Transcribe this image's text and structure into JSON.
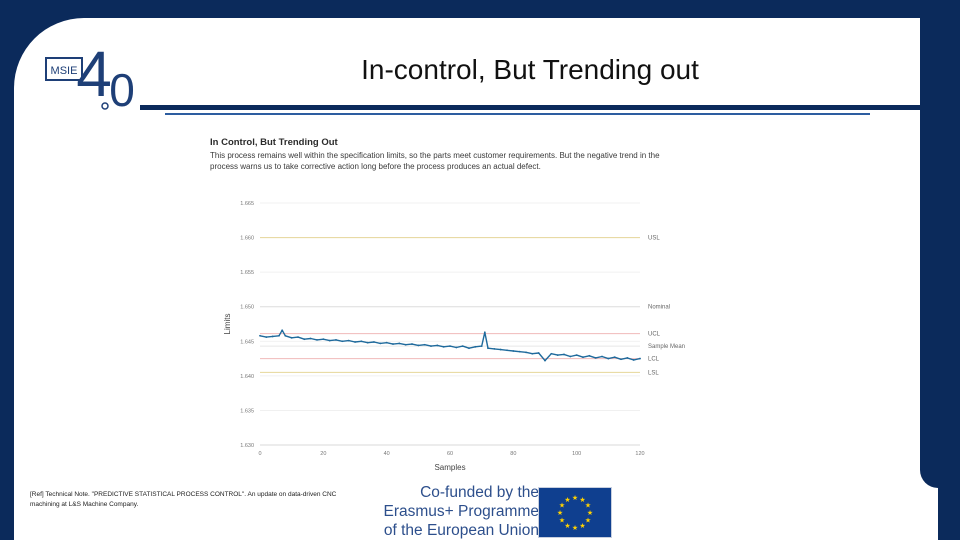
{
  "slide": {
    "title": "In-control, But Trending out",
    "reference": "[Ref] Technical Note. \"PREDICTIVE STATISTICAL PROCESS CONTROL\". An update on data-driven CNC machining at L&S Machine Company.",
    "cofund_lines": [
      "Co-funded by the",
      "Erasmus+ Programme",
      "of the European Union"
    ],
    "logo": {
      "letters": "MSIE",
      "number": "4",
      "suffix": "0",
      "icon": "msie-4-0-logo"
    },
    "colors": {
      "background": "#0b2a5b",
      "accent": "#2d5da0",
      "logo": "#1e3f77",
      "eu_blue": "#0f3f8f",
      "eu_star": "#ffd200"
    }
  },
  "chart_data": {
    "type": "line",
    "title": "In Control, But Trending Out",
    "subtitle": "This process remains well within the specification limits, so the parts meet customer requirements. But the negative trend in the process warns us to take corrective action long before the process produces an actual defect.",
    "xlabel": "Samples",
    "ylabel": "Limits",
    "xlim": [
      0,
      120
    ],
    "ylim": [
      1.63,
      1.665
    ],
    "x_ticks": [
      0,
      20,
      40,
      60,
      80,
      100,
      120
    ],
    "x_tick_labels": [
      "0",
      "20",
      "40",
      "60",
      "80",
      "100",
      "120"
    ],
    "y_ticks": [
      1.63,
      1.635,
      1.64,
      1.645,
      1.65,
      1.655,
      1.66,
      1.665
    ],
    "y_tick_labels": [
      "1.630",
      "1.635",
      "1.640",
      "1.645",
      "1.650",
      "1.655",
      "1.660",
      "1.665"
    ],
    "grid": true,
    "reference_lines": [
      {
        "label": "USL",
        "value": 1.66,
        "color": "#e6d79a"
      },
      {
        "label": "Nominal",
        "value": 1.65,
        "color": "#dedede"
      },
      {
        "label": "UCL",
        "value": 1.6461,
        "color": "#f0b9b9"
      },
      {
        "label": "Sample Mean",
        "value": 1.6443,
        "color": "#e8e8e8"
      },
      {
        "label": "LCL",
        "value": 1.6425,
        "color": "#f0b9b9"
      },
      {
        "label": "LSL",
        "value": 1.6405,
        "color": "#e6d79a"
      }
    ],
    "series": [
      {
        "color": "#1f6a9c",
        "x": [
          0,
          2,
          4,
          6,
          7,
          8,
          10,
          12,
          14,
          16,
          18,
          20,
          22,
          24,
          26,
          28,
          30,
          32,
          34,
          36,
          38,
          40,
          42,
          44,
          46,
          48,
          50,
          52,
          54,
          56,
          58,
          60,
          62,
          64,
          66,
          68,
          70,
          71,
          72,
          74,
          76,
          78,
          80,
          82,
          84,
          86,
          88,
          90,
          92,
          94,
          96,
          98,
          100,
          102,
          104,
          106,
          108,
          110,
          112,
          114,
          116,
          118,
          120
        ],
        "values": [
          1.6458,
          1.6456,
          1.6457,
          1.6458,
          1.6466,
          1.6458,
          1.6455,
          1.6456,
          1.6453,
          1.6454,
          1.6452,
          1.6453,
          1.6451,
          1.6452,
          1.645,
          1.6451,
          1.6449,
          1.645,
          1.6448,
          1.6449,
          1.6447,
          1.6448,
          1.6446,
          1.6447,
          1.6445,
          1.6446,
          1.6444,
          1.6445,
          1.6443,
          1.6444,
          1.6442,
          1.6443,
          1.6441,
          1.6443,
          1.644,
          1.6442,
          1.6443,
          1.6463,
          1.644,
          1.6439,
          1.6438,
          1.6437,
          1.6436,
          1.6435,
          1.6434,
          1.6432,
          1.6433,
          1.6422,
          1.6432,
          1.643,
          1.6431,
          1.6428,
          1.643,
          1.6427,
          1.6429,
          1.6426,
          1.6428,
          1.6425,
          1.6427,
          1.6424,
          1.6426,
          1.6423,
          1.6425
        ]
      }
    ]
  }
}
